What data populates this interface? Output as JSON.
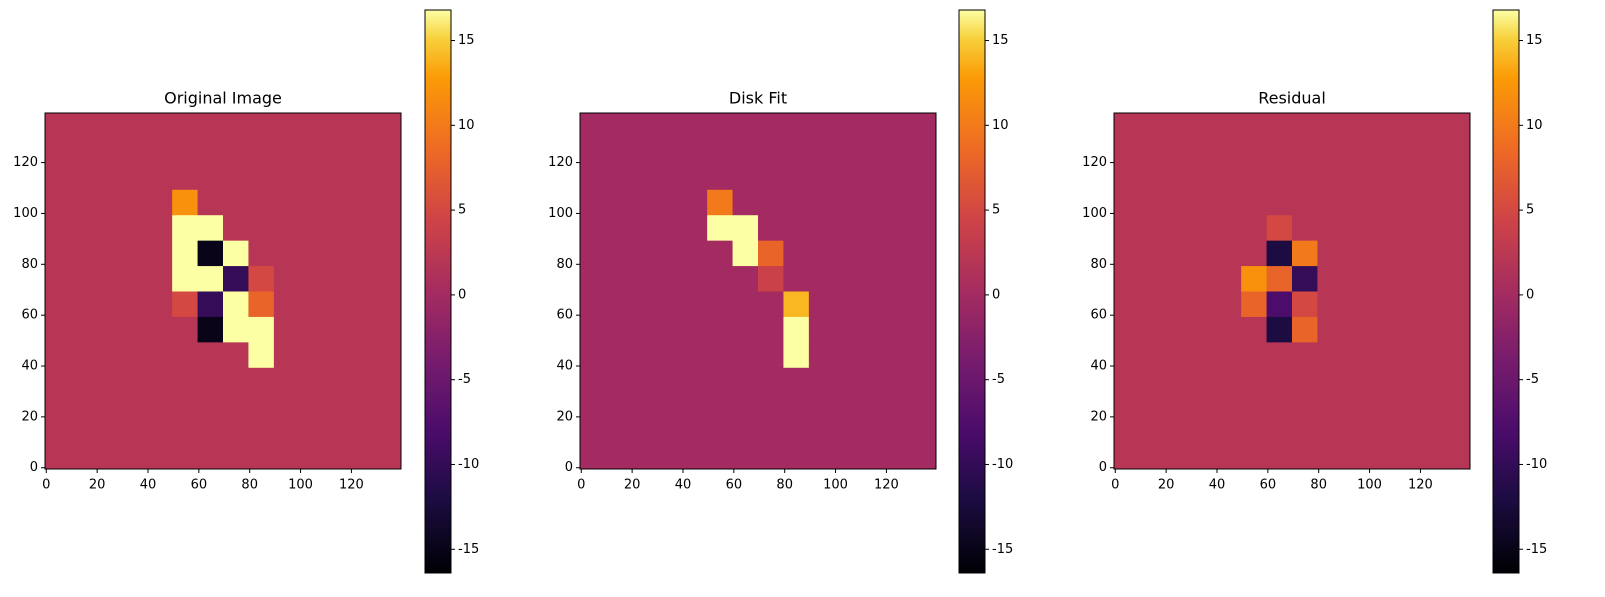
{
  "chart_data": [
    {
      "type": "heatmap",
      "title": "Original Image",
      "cmap": "inferno",
      "xlim": [
        -0.5,
        139.5
      ],
      "ylim": [
        -0.5,
        139.5
      ],
      "xticks": [
        0,
        20,
        40,
        60,
        80,
        100,
        120
      ],
      "yticks": [
        0,
        20,
        40,
        60,
        80,
        100,
        120
      ],
      "clim": [
        -16.4,
        16.8
      ],
      "cticks": [
        -15,
        -10,
        -5,
        0,
        5,
        10,
        15
      ],
      "cell": 10,
      "z": [
        [
          2,
          2,
          2,
          2,
          2,
          2,
          2,
          2,
          2,
          2,
          2,
          2,
          2,
          2
        ],
        [
          2,
          2,
          2,
          2,
          2,
          2,
          2,
          2,
          2,
          2,
          2,
          2,
          2,
          2
        ],
        [
          2,
          2,
          2,
          2,
          2,
          2,
          2,
          2,
          2,
          2,
          2,
          2,
          2,
          2
        ],
        [
          2,
          2,
          2,
          2,
          2,
          2,
          2,
          2,
          2,
          2,
          2,
          2,
          2,
          2
        ],
        [
          2,
          2,
          2,
          2,
          2,
          2,
          2,
          2,
          17,
          2,
          2,
          2,
          2,
          2
        ],
        [
          2,
          2,
          2,
          2,
          2,
          2,
          -15,
          17,
          17,
          2,
          2,
          2,
          2,
          2
        ],
        [
          2,
          2,
          2,
          2,
          2,
          5,
          -10,
          17,
          8,
          2,
          2,
          2,
          2,
          2
        ],
        [
          2,
          2,
          2,
          2,
          2,
          17,
          17,
          -10,
          5,
          2,
          2,
          2,
          2,
          2
        ],
        [
          2,
          2,
          2,
          2,
          2,
          17,
          -15,
          17,
          2,
          2,
          2,
          2,
          2,
          2
        ],
        [
          2,
          2,
          2,
          2,
          2,
          17,
          17,
          2,
          2,
          2,
          2,
          2,
          2,
          2
        ],
        [
          2,
          2,
          2,
          2,
          2,
          12,
          2,
          2,
          2,
          2,
          2,
          2,
          2,
          2
        ],
        [
          2,
          2,
          2,
          2,
          2,
          2,
          2,
          2,
          2,
          2,
          2,
          2,
          2,
          2
        ],
        [
          2,
          2,
          2,
          2,
          2,
          2,
          2,
          2,
          2,
          2,
          2,
          2,
          2,
          2
        ],
        [
          2,
          2,
          2,
          2,
          2,
          2,
          2,
          2,
          2,
          2,
          2,
          2,
          2,
          2
        ]
      ]
    },
    {
      "type": "heatmap",
      "title": "Disk Fit",
      "cmap": "inferno",
      "xlim": [
        -0.5,
        139.5
      ],
      "ylim": [
        -0.5,
        139.5
      ],
      "xticks": [
        0,
        20,
        40,
        60,
        80,
        100,
        120
      ],
      "yticks": [
        0,
        20,
        40,
        60,
        80,
        100,
        120
      ],
      "clim": [
        -16.4,
        16.8
      ],
      "cticks": [
        -15,
        -10,
        -5,
        0,
        5,
        10,
        15
      ],
      "cell": 10,
      "z": [
        [
          0,
          0,
          0,
          0,
          0,
          0,
          0,
          0,
          0,
          0,
          0,
          0,
          0,
          0
        ],
        [
          0,
          0,
          0,
          0,
          0,
          0,
          0,
          0,
          0,
          0,
          0,
          0,
          0,
          0
        ],
        [
          0,
          0,
          0,
          0,
          0,
          0,
          0,
          0,
          0,
          0,
          0,
          0,
          0,
          0
        ],
        [
          0,
          0,
          0,
          0,
          0,
          0,
          0,
          0,
          0,
          0,
          0,
          0,
          0,
          0
        ],
        [
          0,
          0,
          0,
          0,
          0,
          0,
          0,
          0,
          17,
          0,
          0,
          0,
          0,
          0
        ],
        [
          0,
          0,
          0,
          0,
          0,
          0,
          0,
          0,
          17,
          0,
          0,
          0,
          0,
          0
        ],
        [
          0,
          0,
          0,
          0,
          0,
          0,
          0,
          0,
          14,
          0,
          0,
          0,
          0,
          0
        ],
        [
          0,
          0,
          0,
          0,
          0,
          0,
          0,
          4,
          0,
          0,
          0,
          0,
          0,
          0
        ],
        [
          0,
          0,
          0,
          0,
          0,
          0,
          17,
          8,
          0,
          0,
          0,
          0,
          0,
          0
        ],
        [
          0,
          0,
          0,
          0,
          0,
          17,
          17,
          0,
          0,
          0,
          0,
          0,
          0,
          0
        ],
        [
          0,
          0,
          0,
          0,
          0,
          10,
          0,
          0,
          0,
          0,
          0,
          0,
          0,
          0
        ],
        [
          0,
          0,
          0,
          0,
          0,
          0,
          0,
          0,
          0,
          0,
          0,
          0,
          0,
          0
        ],
        [
          0,
          0,
          0,
          0,
          0,
          0,
          0,
          0,
          0,
          0,
          0,
          0,
          0,
          0
        ],
        [
          0,
          0,
          0,
          0,
          0,
          0,
          0,
          0,
          0,
          0,
          0,
          0,
          0,
          0
        ]
      ]
    },
    {
      "type": "heatmap",
      "title": "Residual",
      "cmap": "inferno",
      "xlim": [
        -0.5,
        139.5
      ],
      "ylim": [
        -0.5,
        139.5
      ],
      "xticks": [
        0,
        20,
        40,
        60,
        80,
        100,
        120
      ],
      "yticks": [
        0,
        20,
        40,
        60,
        80,
        100,
        120
      ],
      "clim": [
        -16.4,
        16.8
      ],
      "cticks": [
        -15,
        -10,
        -5,
        0,
        5,
        10,
        15
      ],
      "cell": 10,
      "z": [
        [
          2,
          2,
          2,
          2,
          2,
          2,
          2,
          2,
          2,
          2,
          2,
          2,
          2,
          2
        ],
        [
          2,
          2,
          2,
          2,
          2,
          2,
          2,
          2,
          2,
          2,
          2,
          2,
          2,
          2
        ],
        [
          2,
          2,
          2,
          2,
          2,
          2,
          2,
          2,
          2,
          2,
          2,
          2,
          2,
          2
        ],
        [
          2,
          2,
          2,
          2,
          2,
          2,
          2,
          2,
          2,
          2,
          2,
          2,
          2,
          2
        ],
        [
          2,
          2,
          2,
          2,
          2,
          2,
          2,
          2,
          2,
          2,
          2,
          2,
          2,
          2
        ],
        [
          2,
          2,
          2,
          2,
          2,
          2,
          -12,
          8,
          2,
          2,
          2,
          2,
          2,
          2
        ],
        [
          2,
          2,
          2,
          2,
          2,
          8,
          -8,
          5,
          2,
          2,
          2,
          2,
          2,
          2
        ],
        [
          2,
          2,
          2,
          2,
          2,
          12,
          8,
          -10,
          2,
          2,
          2,
          2,
          2,
          2
        ],
        [
          2,
          2,
          2,
          2,
          2,
          2,
          -12,
          10,
          2,
          2,
          2,
          2,
          2,
          2
        ],
        [
          2,
          2,
          2,
          2,
          2,
          2,
          5,
          2,
          2,
          2,
          2,
          2,
          2,
          2
        ],
        [
          2,
          2,
          2,
          2,
          2,
          2,
          2,
          2,
          2,
          2,
          2,
          2,
          2,
          2
        ],
        [
          2,
          2,
          2,
          2,
          2,
          2,
          2,
          2,
          2,
          2,
          2,
          2,
          2,
          2
        ],
        [
          2,
          2,
          2,
          2,
          2,
          2,
          2,
          2,
          2,
          2,
          2,
          2,
          2,
          2
        ],
        [
          2,
          2,
          2,
          2,
          2,
          2,
          2,
          2,
          2,
          2,
          2,
          2,
          2,
          2
        ]
      ]
    }
  ]
}
